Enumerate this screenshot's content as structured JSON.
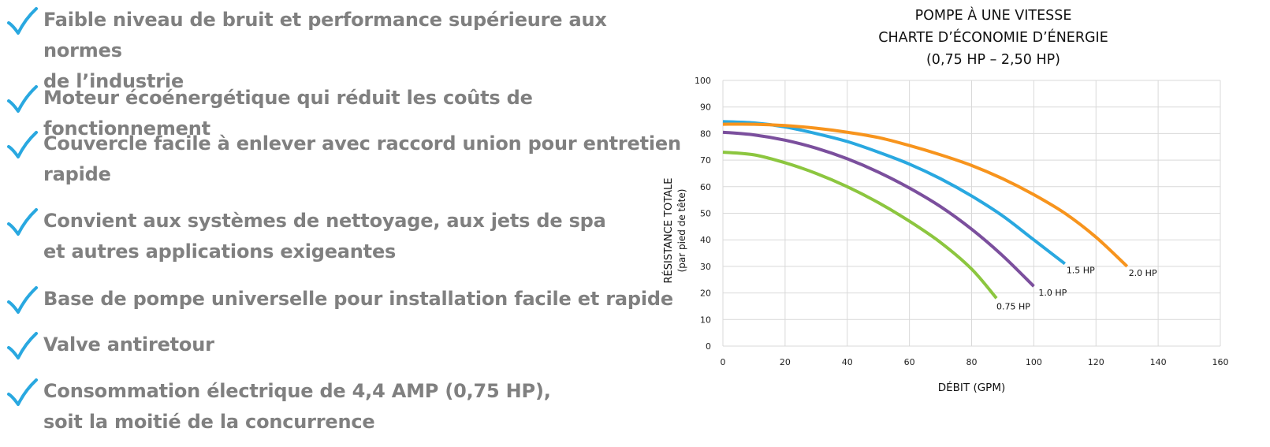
{
  "features": [
    {
      "icon": "checkmark-icon",
      "text": "Faible niveau de bruit et performance supérieure aux normes\nde l’industrie"
    },
    {
      "icon": "checkmark-icon",
      "text": "Moteur écoénergétique  qui réduit les coûts de fonctionnement"
    },
    {
      "icon": "checkmark-icon",
      "text": "Couvercle facile à enlever avec raccord union pour entretien\nrapide"
    },
    {
      "icon": "checkmark-icon",
      "text": "Convient aux systèmes de nettoyage, aux jets de spa\net autres applications exigeantes"
    },
    {
      "icon": "checkmark-icon",
      "text": "Base de pompe universelle pour installation facile et rapide"
    },
    {
      "icon": "checkmark-icon",
      "text": "Valve antiretour"
    },
    {
      "icon": "checkmark-icon",
      "text": "Consommation électrique de 4,4 AMP (0,75 HP),\nsoit la moitié de la concurrence"
    }
  ],
  "colors": {
    "checkmark": "#29A8E0",
    "feature_text": "#808080",
    "grid": "#D9D9D9"
  },
  "chart_data": {
    "type": "line",
    "title": [
      "POMPE À UNE VITESSE",
      "CHARTE D’ÉCONOMIE D’ÉNERGIE",
      "(0,75 HP – 2,50 HP)"
    ],
    "xlabel": "DÉBIT (GPM)",
    "ylabel": "RÉSISTANCE TOTALE",
    "ylabel2": "(par pied de tête)",
    "xlim": [
      0,
      160
    ],
    "ylim": [
      0,
      100
    ],
    "xticks": [
      0,
      20,
      40,
      60,
      80,
      100,
      120,
      140,
      160
    ],
    "yticks": [
      0,
      10,
      20,
      30,
      40,
      50,
      60,
      70,
      80,
      90,
      100
    ],
    "grid": true,
    "series": [
      {
        "name": "0.75 HP",
        "color": "#8CC63F",
        "x": [
          0,
          10,
          20,
          30,
          40,
          50,
          60,
          70,
          80,
          88
        ],
        "y": [
          73,
          72,
          69,
          65,
          60,
          54,
          47,
          39,
          29,
          18
        ]
      },
      {
        "name": "1.0 HP",
        "color": "#7B4F9D",
        "x": [
          0,
          10,
          20,
          30,
          40,
          50,
          60,
          70,
          80,
          90,
          100
        ],
        "y": [
          80.5,
          79.5,
          77.5,
          74.5,
          70.5,
          65.5,
          59.5,
          52.5,
          44,
          34,
          22.5
        ]
      },
      {
        "name": "1.5 HP",
        "color": "#29A8E0",
        "x": [
          0,
          10,
          20,
          30,
          40,
          50,
          60,
          70,
          80,
          90,
          100,
          110
        ],
        "y": [
          84.5,
          84,
          82.5,
          80,
          77,
          73,
          68.5,
          63,
          56.5,
          49,
          40,
          31
        ]
      },
      {
        "name": "2.0 HP",
        "color": "#F7941D",
        "x": [
          0,
          10,
          20,
          30,
          40,
          50,
          60,
          70,
          80,
          90,
          100,
          110,
          120,
          130
        ],
        "y": [
          83.5,
          83.5,
          83,
          82,
          80.5,
          78.5,
          75.5,
          72,
          68,
          63,
          57,
          50,
          41,
          30
        ]
      }
    ]
  }
}
